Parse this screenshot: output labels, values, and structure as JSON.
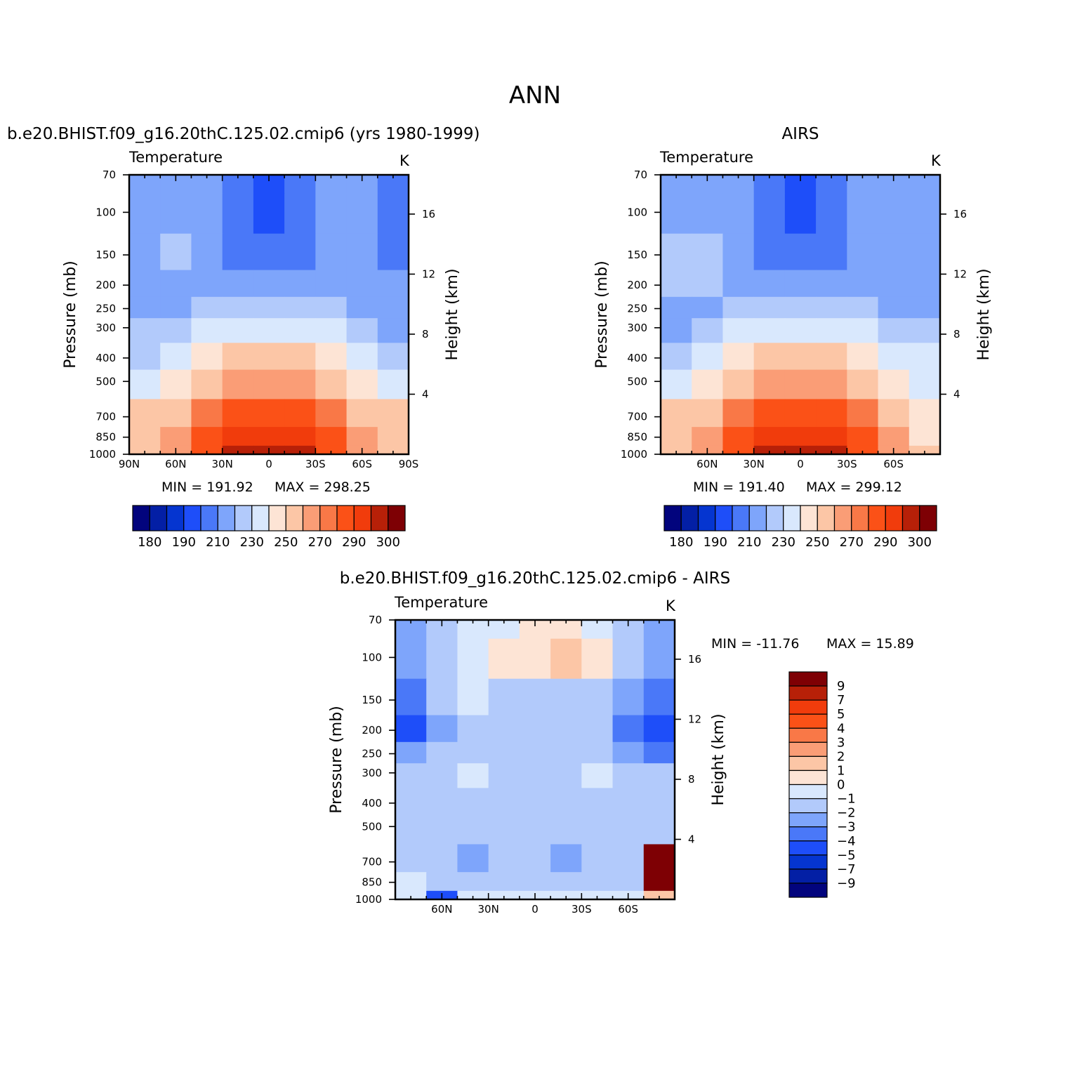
{
  "figure": {
    "title": "ANN"
  },
  "panels": [
    {
      "id": "model",
      "title": "b.e20.BHIST.f09_g16.20thC.125.02.cmip6 (yrs 1980-1999)",
      "variable": "Temperature",
      "units": "K",
      "ylabel_left": "Pressure (mb)",
      "ylabel_right": "Height (km)",
      "min_label": "MIN = 191.92",
      "max_label": "MAX = 298.25"
    },
    {
      "id": "obs",
      "title": "AIRS",
      "variable": "Temperature",
      "units": "K",
      "ylabel_left": "Pressure (mb)",
      "ylabel_right": "Height (km)",
      "min_label": "MIN = 191.40",
      "max_label": "MAX = 299.12"
    },
    {
      "id": "diff",
      "title": "b.e20.BHIST.f09_g16.20thC.125.02.cmip6 - AIRS",
      "variable": "Temperature",
      "units": "K",
      "ylabel_left": "Pressure (mb)",
      "ylabel_right": "Height (km)",
      "min_label": "MIN = -11.76",
      "max_label": "MAX =  15.89"
    }
  ],
  "chart_data": [
    {
      "type": "heatmap",
      "panel": "model",
      "title": "b.e20.BHIST.f09_g16.20thC.125.02.cmip6 (yrs 1980-1999)",
      "xlabel": "",
      "ylabel": "Pressure (mb)",
      "y2label": "Height (km)",
      "x_ticks": [
        "90N",
        "60N",
        "30N",
        "0",
        "30S",
        "60S",
        "90S"
      ],
      "x_tick_values": [
        90,
        60,
        30,
        0,
        -30,
        -60,
        -90
      ],
      "y_ticks": [
        "70",
        "100",
        "150",
        "200",
        "250",
        "300",
        "400",
        "500",
        "700",
        "850",
        "1000"
      ],
      "y2_ticks": [
        "4",
        "8",
        "12",
        "16"
      ],
      "xlim": [
        90,
        -90
      ],
      "ylim": [
        1000,
        70
      ],
      "y2lim": [
        0,
        18.5
      ],
      "min": 191.92,
      "max": 298.25,
      "contour_levels": [
        180,
        185,
        190,
        200,
        210,
        220,
        230,
        240,
        250,
        260,
        270,
        280,
        290,
        295,
        300
      ],
      "colorbar_labels": [
        "180",
        "190",
        "210",
        "230",
        "250",
        "270",
        "290",
        "300"
      ],
      "bands": [
        {
          "pressure": 70,
          "values": [
            215,
            215,
            213,
            200,
            193,
            200,
            213,
            215,
            208
          ]
        },
        {
          "pressure": 100,
          "values": [
            215,
            215,
            212,
            200,
            195,
            200,
            212,
            215,
            208
          ]
        },
        {
          "pressure": 150,
          "values": [
            215,
            222,
            212,
            205,
            204,
            205,
            213,
            215,
            208
          ]
        },
        {
          "pressure": 200,
          "values": [
            215,
            215,
            214,
            213,
            212,
            213,
            215,
            215,
            210
          ]
        },
        {
          "pressure": 250,
          "values": [
            216,
            217,
            222,
            225,
            226,
            225,
            220,
            215,
            210
          ]
        },
        {
          "pressure": 300,
          "values": [
            220,
            224,
            232,
            235,
            236,
            235,
            230,
            224,
            218
          ]
        },
        {
          "pressure": 400,
          "values": [
            228,
            235,
            245,
            250,
            252,
            250,
            243,
            235,
            228
          ]
        },
        {
          "pressure": 500,
          "values": [
            236,
            245,
            257,
            262,
            264,
            262,
            255,
            245,
            237
          ]
        },
        {
          "pressure": 700,
          "values": [
            250,
            258,
            273,
            280,
            282,
            280,
            272,
            258,
            250
          ]
        },
        {
          "pressure": 850,
          "values": [
            256,
            265,
            282,
            292,
            294,
            292,
            282,
            265,
            256
          ]
        },
        {
          "pressure": 1000,
          "values": [
            258,
            268,
            288,
            297,
            298,
            296,
            288,
            268,
            258
          ]
        }
      ]
    },
    {
      "type": "heatmap",
      "panel": "obs",
      "title": "AIRS",
      "xlabel": "",
      "ylabel": "Pressure (mb)",
      "y2label": "Height (km)",
      "x_ticks": [
        "60N",
        "30N",
        "0",
        "30S",
        "60S"
      ],
      "x_tick_values": [
        60,
        30,
        0,
        -30,
        -60
      ],
      "y_ticks": [
        "70",
        "100",
        "150",
        "200",
        "250",
        "300",
        "400",
        "500",
        "700",
        "850",
        "1000"
      ],
      "y2_ticks": [
        "4",
        "8",
        "12",
        "16"
      ],
      "xlim": [
        90,
        -90
      ],
      "ylim": [
        1000,
        70
      ],
      "y2lim": [
        0,
        18.5
      ],
      "min": 191.4,
      "max": 299.12,
      "contour_levels": [
        180,
        185,
        190,
        200,
        210,
        220,
        230,
        240,
        250,
        260,
        270,
        280,
        290,
        295,
        300
      ],
      "colorbar_labels": [
        "180",
        "190",
        "210",
        "230",
        "250",
        "270",
        "290",
        "300"
      ],
      "bands": [
        {
          "pressure": 70,
          "values": [
            215,
            215,
            213,
            200,
            193,
            200,
            213,
            215,
            210
          ]
        },
        {
          "pressure": 100,
          "values": [
            218,
            216,
            212,
            200,
            195,
            200,
            212,
            215,
            210
          ]
        },
        {
          "pressure": 150,
          "values": [
            222,
            224,
            213,
            205,
            204,
            205,
            213,
            215,
            212
          ]
        },
        {
          "pressure": 200,
          "values": [
            222,
            220,
            215,
            213,
            212,
            213,
            215,
            215,
            212
          ]
        },
        {
          "pressure": 250,
          "values": [
            215,
            215,
            222,
            225,
            226,
            225,
            220,
            215,
            212
          ]
        },
        {
          "pressure": 300,
          "values": [
            218,
            223,
            232,
            235,
            236,
            235,
            230,
            224,
            220
          ]
        },
        {
          "pressure": 400,
          "values": [
            228,
            235,
            245,
            250,
            252,
            250,
            243,
            235,
            230
          ]
        },
        {
          "pressure": 500,
          "values": [
            236,
            245,
            257,
            262,
            264,
            262,
            255,
            245,
            238
          ]
        },
        {
          "pressure": 700,
          "values": [
            250,
            258,
            273,
            280,
            282,
            280,
            272,
            258,
            245
          ]
        },
        {
          "pressure": 850,
          "values": [
            256,
            265,
            282,
            292,
            294,
            292,
            282,
            265,
            248
          ]
        },
        {
          "pressure": 1000,
          "values": [
            258,
            268,
            288,
            297,
            299,
            296,
            288,
            268,
            250
          ]
        }
      ]
    },
    {
      "type": "heatmap",
      "panel": "diff",
      "title": "b.e20.BHIST.f09_g16.20thC.125.02.cmip6 - AIRS",
      "xlabel": "",
      "ylabel": "Pressure (mb)",
      "y2label": "Height (km)",
      "x_ticks": [
        "60N",
        "30N",
        "0",
        "30S",
        "60S"
      ],
      "x_tick_values": [
        60,
        30,
        0,
        -30,
        -60
      ],
      "y_ticks": [
        "70",
        "100",
        "150",
        "200",
        "250",
        "300",
        "400",
        "500",
        "700",
        "850",
        "1000"
      ],
      "y2_ticks": [
        "4",
        "8",
        "12",
        "16"
      ],
      "xlim": [
        90,
        -90
      ],
      "ylim": [
        1000,
        70
      ],
      "y2lim": [
        0,
        18.5
      ],
      "min": -11.76,
      "max": 15.89,
      "contour_levels": [
        -9,
        -7,
        -5,
        -4,
        -3,
        -2,
        -1,
        0,
        1,
        2,
        3,
        4,
        5,
        7,
        9
      ],
      "colorbar_labels": [
        "9",
        "7",
        "5",
        "4",
        "3",
        "2",
        "1",
        "0",
        "-1",
        "-2",
        "-3",
        "-4",
        "-5",
        "-7",
        "-9"
      ],
      "bands": [
        {
          "pressure": 70,
          "values": [
            -3,
            -2,
            -0.5,
            -0.5,
            0.5,
            0.5,
            -0.5,
            -2,
            -3
          ]
        },
        {
          "pressure": 100,
          "values": [
            -3,
            -1.5,
            -0.5,
            0.5,
            0.5,
            1,
            0.5,
            -2,
            -3
          ]
        },
        {
          "pressure": 150,
          "values": [
            -4,
            -2,
            -1,
            -1.5,
            -1.5,
            -1.5,
            -1.5,
            -3,
            -4
          ]
        },
        {
          "pressure": 200,
          "values": [
            -5,
            -3,
            -1.5,
            -2,
            -2,
            -2,
            -2,
            -4,
            -5
          ]
        },
        {
          "pressure": 250,
          "values": [
            -3,
            -2,
            -1.5,
            -2,
            -2,
            -1.5,
            -1.5,
            -3,
            -4
          ]
        },
        {
          "pressure": 300,
          "values": [
            -2,
            -1.5,
            -0.5,
            -1.5,
            -2,
            -1.5,
            -0.5,
            -1.5,
            -2
          ]
        },
        {
          "pressure": 400,
          "values": [
            -1.5,
            -1.5,
            -1.5,
            -1.5,
            -1.5,
            -1.5,
            -1.5,
            -1.5,
            -1.5
          ]
        },
        {
          "pressure": 500,
          "values": [
            -1.5,
            -1.5,
            -1.5,
            -1.5,
            -1.5,
            -2,
            -1.5,
            -1.5,
            -1.5
          ]
        },
        {
          "pressure": 700,
          "values": [
            -1.5,
            -2,
            -2.5,
            -2,
            -1.5,
            -2.5,
            -1.5,
            -1.5,
            9
          ]
        },
        {
          "pressure": 850,
          "values": [
            -1,
            -1.5,
            -2,
            -1.5,
            -1.5,
            -2,
            -1.5,
            -2,
            9
          ]
        },
        {
          "pressure": 1000,
          "values": [
            -1,
            -5,
            -1,
            -1,
            -0.5,
            -0.5,
            -0.5,
            -1,
            1
          ]
        }
      ]
    }
  ],
  "colors": {
    "palette": [
      "#02047d",
      "#031fa5",
      "#0535d0",
      "#1e4ef9",
      "#4a78f8",
      "#7ea5fb",
      "#b2cafb",
      "#d9e8fd",
      "#fde4d5",
      "#fcc6a6",
      "#fa9d76",
      "#f97847",
      "#fb5117",
      "#f13c0c",
      "#b72008",
      "#7e0004"
    ]
  }
}
